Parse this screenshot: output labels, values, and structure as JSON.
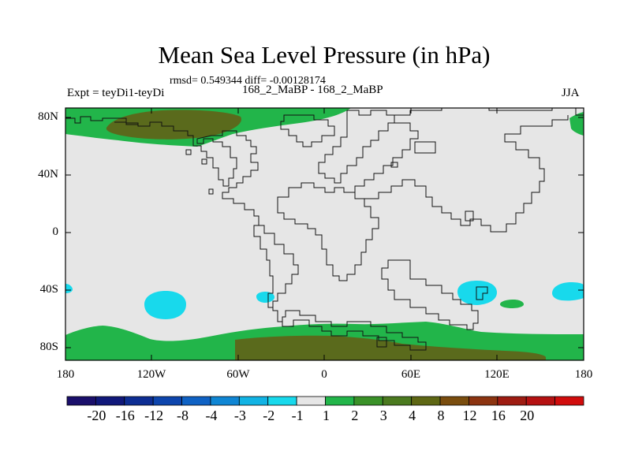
{
  "title": "Mean Sea Level Pressure (in hPa)",
  "stats_line": "rmsd= 0.549344  diff= -0.00128174",
  "left_label": "Expt = teyDi1-teyDi",
  "center_label": "168_2_MaBP - 168_2_MaBP",
  "right_label": "JJA",
  "lat_ticks": [
    "80N",
    "40N",
    "0",
    "40S",
    "80S"
  ],
  "lon_ticks": [
    "180",
    "120W",
    "60W",
    "0",
    "60E",
    "120E",
    "180"
  ],
  "colorbar": {
    "colors": [
      "#1a0f6b",
      "#10187a",
      "#0d2d93",
      "#0d45ad",
      "#0f62c4",
      "#0f86d4",
      "#12b3e4",
      "#18d9ec",
      "#e6e6e6",
      "#22b54a",
      "#3a9128",
      "#4b7a1f",
      "#5e6714",
      "#7a4d0e",
      "#8c3410",
      "#9e1c12",
      "#b51112",
      "#d10c0c"
    ],
    "labels": [
      "-20",
      "-16",
      "-12",
      "-8",
      "-4",
      "-3",
      "-2",
      "-1",
      "1",
      "2",
      "3",
      "4",
      "8",
      "12",
      "16",
      "20"
    ]
  },
  "map_colors": {
    "background": "#e6e6e6",
    "green": "#22b54a",
    "dark_green": "#5a6a1c",
    "cyan": "#18d9ec",
    "coast": "#111111"
  }
}
